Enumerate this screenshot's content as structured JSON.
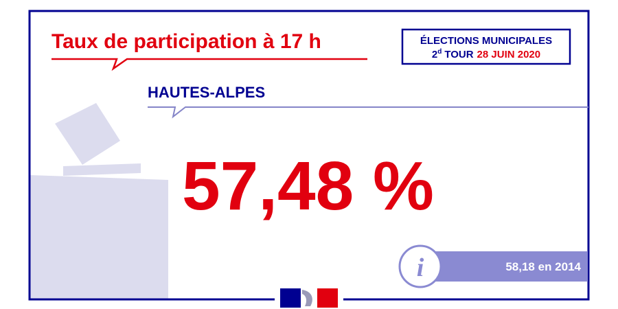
{
  "header": {
    "title": "Taux de participation à 17 h"
  },
  "badge": {
    "line1": "ÉLECTIONS MUNICIPALES",
    "round_number": "2",
    "round_suffix": "d",
    "round_word": "TOUR",
    "date": "28 JUIN 2020"
  },
  "department": "HAUTES-ALPES",
  "rate": "57,48 %",
  "comparison": {
    "icon": "i",
    "text": "58,18 en 2014"
  }
}
